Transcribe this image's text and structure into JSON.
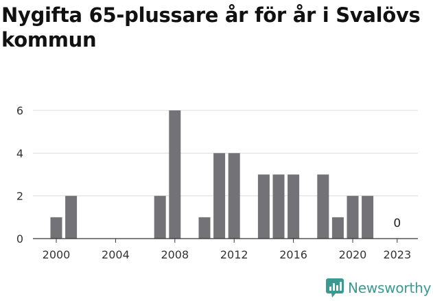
{
  "title": "Nygifta 65-plussare år för år i Svalövs kommun",
  "brand": {
    "name": "Newsworthy",
    "color": "#3a9a91"
  },
  "chart_data": {
    "type": "bar",
    "title": "Nygifta 65-plussare år för år i Svalövs kommun",
    "xlabel": "",
    "ylabel": "",
    "x": [
      2000,
      2001,
      2002,
      2003,
      2004,
      2005,
      2006,
      2007,
      2008,
      2009,
      2010,
      2011,
      2012,
      2013,
      2014,
      2015,
      2016,
      2017,
      2018,
      2019,
      2020,
      2021,
      2022,
      2023
    ],
    "values": [
      1,
      2,
      0,
      0,
      0,
      0,
      0,
      2,
      6,
      0,
      1,
      4,
      4,
      0,
      3,
      3,
      3,
      0,
      3,
      1,
      2,
      2,
      0,
      0
    ],
    "ylim": [
      0,
      6
    ],
    "yticks": [
      0,
      2,
      4,
      6
    ],
    "xticks": [
      2000,
      2004,
      2008,
      2012,
      2016,
      2020,
      2023
    ],
    "annotation": {
      "x": 2023,
      "label": "0"
    },
    "bar_color": "#737277",
    "grid": true
  }
}
